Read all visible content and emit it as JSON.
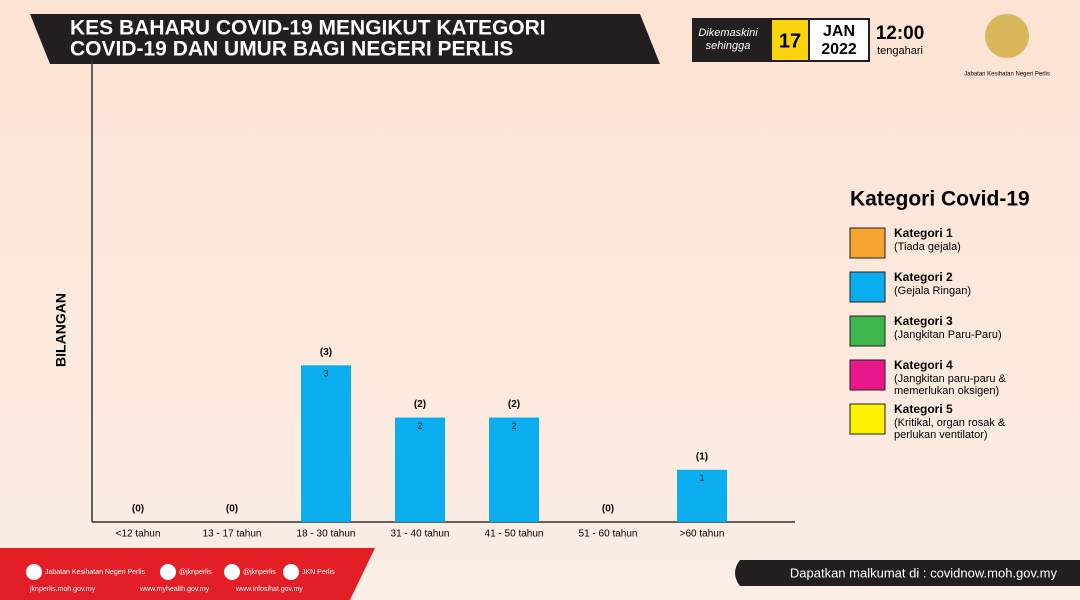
{
  "header": {
    "title_lines": [
      "KES BAHARU COVID-19 MENGIKUT KATEGORI",
      "COVID-19 DAN UMUR BAGI NEGERI PERLIS"
    ],
    "updated_label": [
      "Dikemaskini",
      "sehingga"
    ],
    "day": "17",
    "month": "JAN",
    "year": "2022",
    "time": "12:00",
    "time_note": "tengahari",
    "agency": "Jabatan Kesihatan Negeri Perlis"
  },
  "chart_data": {
    "type": "bar",
    "ylabel": "BILANGAN",
    "categories": [
      "<12 tahun",
      "13 - 17 tahun",
      "18 - 30 tahun",
      "31 - 40 tahun",
      "41 - 50 tahun",
      "51 - 60 tahun",
      ">60 tahun"
    ],
    "values": [
      0,
      0,
      3,
      2,
      2,
      0,
      1
    ],
    "value_labels": [
      "(0)",
      "(0)",
      "(3)",
      "(2)",
      "(2)",
      "(0)",
      "(1)"
    ],
    "legend_title": "Kategori Covid-19",
    "series": [
      {
        "name": "Kategori 1",
        "description": [
          "(Tiada gejala)"
        ],
        "color": "#f7a531",
        "values": [
          0,
          0,
          0,
          0,
          0,
          0,
          0
        ]
      },
      {
        "name": "Kategori 2",
        "description": [
          "(Gejala Ringan)"
        ],
        "color": "#0aaeef",
        "values": [
          0,
          0,
          3,
          2,
          2,
          0,
          1
        ]
      },
      {
        "name": "Kategori 3",
        "description": [
          "(Jangkitan Paru-Paru)"
        ],
        "color": "#3cb64a",
        "values": [
          0,
          0,
          0,
          0,
          0,
          0,
          0
        ]
      },
      {
        "name": "Kategori 4",
        "description": [
          "(Jangkitan paru-paru &",
          "memerlukan oksigen)"
        ],
        "color": "#e9168c",
        "values": [
          0,
          0,
          0,
          0,
          0,
          0,
          0
        ]
      },
      {
        "name": "Kategori 5",
        "description": [
          "(Kritikal, organ rosak &",
          "perlukan ventilator)"
        ],
        "color": "#fff200",
        "values": [
          0,
          0,
          0,
          0,
          0,
          0,
          0
        ]
      }
    ],
    "ylim": [
      0,
      8.75
    ]
  },
  "footer": {
    "social": [
      "Jabatan Kesihatan Negeri Perlis",
      "@jknperlis",
      "@jknperlis",
      "JKN Perlis"
    ],
    "sites": [
      "jknperlis.moh.gov.my",
      "www.myhealth.gov.my",
      "www.infosihat.gov.my"
    ],
    "info": "Dapatkan malkumat di : covidnow.moh.gov.my"
  }
}
